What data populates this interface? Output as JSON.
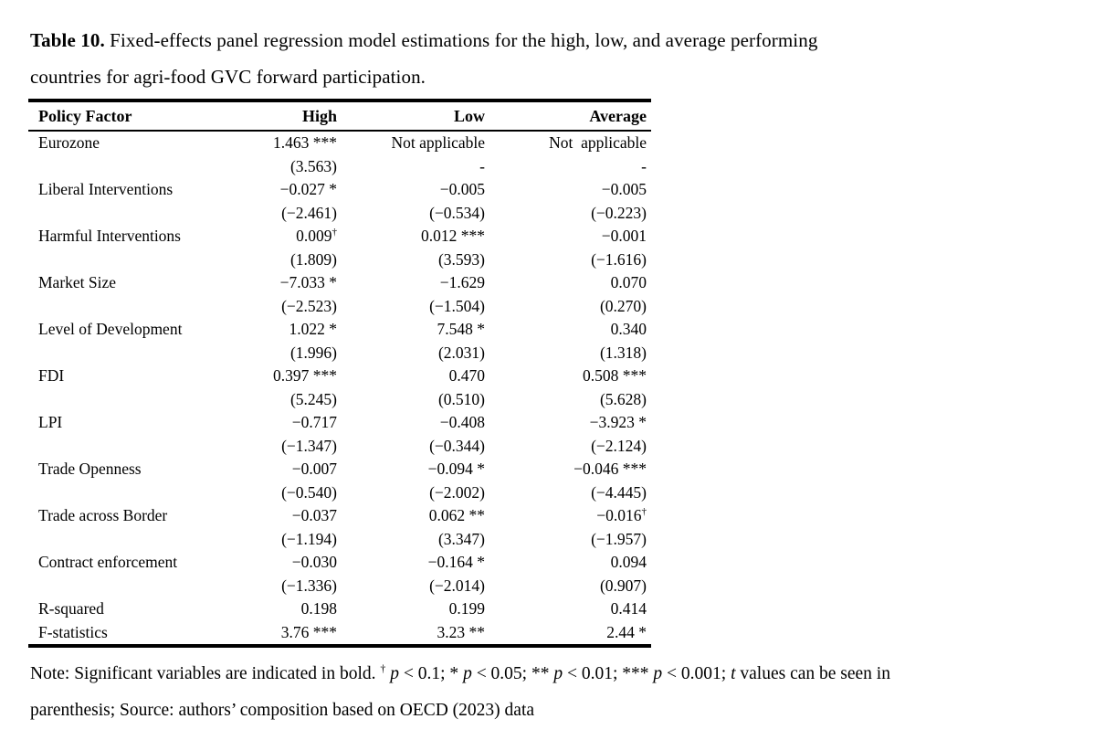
{
  "caption": {
    "label": "Table 10.",
    "rest_line1": " Fixed-effects panel regression model estimations for the high, low, and average performing",
    "line2": "countries for agri-food GVC forward participation."
  },
  "table": {
    "headers": [
      {
        "label": "Policy Factor"
      },
      {
        "label": "High"
      },
      {
        "label": "Low"
      },
      {
        "label": "Average"
      }
    ],
    "rows": [
      {
        "cells": [
          {
            "t": "Eurozone",
            "b": false
          },
          {
            "t": "1.463 ***",
            "b": true
          },
          {
            "t": "Not applicable",
            "b": false
          },
          {
            "t": "Not  applicable",
            "b": false
          }
        ]
      },
      {
        "cells": [
          {
            "t": "",
            "b": false
          },
          {
            "t": "(3.563)",
            "b": true
          },
          {
            "t": "-",
            "b": false
          },
          {
            "t": "-",
            "b": false
          }
        ]
      },
      {
        "cells": [
          {
            "t": "Liberal Interventions",
            "b": false
          },
          {
            "t": "−0.027 *",
            "b": true
          },
          {
            "t": "−0.005",
            "b": false
          },
          {
            "t": "−0.005",
            "b": false
          }
        ]
      },
      {
        "cells": [
          {
            "t": "",
            "b": false
          },
          {
            "t": "(−2.461)",
            "b": true
          },
          {
            "t": "(−0.534)",
            "b": false
          },
          {
            "t": "(−0.223)",
            "b": false
          }
        ]
      },
      {
        "cells": [
          {
            "t": "Harmful Interventions",
            "b": false
          },
          {
            "t": "0.009†",
            "b": true
          },
          {
            "t": "0.012 ***",
            "b": true
          },
          {
            "t": "−0.001",
            "b": false
          }
        ]
      },
      {
        "cells": [
          {
            "t": "",
            "b": false
          },
          {
            "t": "(1.809)",
            "b": true
          },
          {
            "t": "(3.593)",
            "b": true
          },
          {
            "t": "(−1.616)",
            "b": false
          }
        ]
      },
      {
        "cells": [
          {
            "t": "Market Size",
            "b": false
          },
          {
            "t": "−7.033 *",
            "b": true
          },
          {
            "t": "−1.629",
            "b": false
          },
          {
            "t": "0.070",
            "b": false
          }
        ]
      },
      {
        "cells": [
          {
            "t": "",
            "b": false
          },
          {
            "t": "(−2.523)",
            "b": true
          },
          {
            "t": "(−1.504)",
            "b": false
          },
          {
            "t": "(0.270)",
            "b": false
          }
        ]
      },
      {
        "cells": [
          {
            "t": "Level of Development",
            "b": false
          },
          {
            "t": "1.022 *",
            "b": true
          },
          {
            "t": "7.548 *",
            "b": true
          },
          {
            "t": "0.340",
            "b": false
          }
        ]
      },
      {
        "cells": [
          {
            "t": "",
            "b": false
          },
          {
            "t": "(1.996)",
            "b": true
          },
          {
            "t": "(2.031)",
            "b": true
          },
          {
            "t": "(1.318)",
            "b": false
          }
        ]
      },
      {
        "cells": [
          {
            "t": "FDI",
            "b": false
          },
          {
            "t": "0.397 ***",
            "b": true
          },
          {
            "t": "0.470",
            "b": false
          },
          {
            "t": "0.508 ***",
            "b": true
          }
        ]
      },
      {
        "cells": [
          {
            "t": "",
            "b": false
          },
          {
            "t": "(5.245)",
            "b": true
          },
          {
            "t": "(0.510)",
            "b": false
          },
          {
            "t": "(5.628)",
            "b": true
          }
        ]
      },
      {
        "cells": [
          {
            "t": "LPI",
            "b": false
          },
          {
            "t": "−0.717",
            "b": false
          },
          {
            "t": "−0.408",
            "b": false
          },
          {
            "t": "−3.923 *",
            "b": true
          }
        ]
      },
      {
        "cells": [
          {
            "t": "",
            "b": false
          },
          {
            "t": "(−1.347)",
            "b": false
          },
          {
            "t": "(−0.344)",
            "b": false
          },
          {
            "t": "(−2.124)",
            "b": true
          }
        ]
      },
      {
        "cells": [
          {
            "t": "Trade Openness",
            "b": false
          },
          {
            "t": "−0.007",
            "b": false
          },
          {
            "t": "−0.094 *",
            "b": true
          },
          {
            "t": "−0.046 ***",
            "b": true
          }
        ]
      },
      {
        "cells": [
          {
            "t": "",
            "b": false
          },
          {
            "t": "(−0.540)",
            "b": false
          },
          {
            "t": "(−2.002)",
            "b": true
          },
          {
            "t": "(−4.445)",
            "b": true
          }
        ]
      },
      {
        "cells": [
          {
            "t": "Trade across Border",
            "b": false
          },
          {
            "t": "−0.037",
            "b": false
          },
          {
            "t": "0.062 **",
            "b": true
          },
          {
            "t": "−0.016†",
            "b": true
          }
        ]
      },
      {
        "cells": [
          {
            "t": "",
            "b": false
          },
          {
            "t": "(−1.194)",
            "b": false
          },
          {
            "t": "(3.347)",
            "b": true
          },
          {
            "t": "(−1.957)",
            "b": true
          }
        ]
      },
      {
        "cells": [
          {
            "t": "Contract enforcement",
            "b": false
          },
          {
            "t": "−0.030",
            "b": false
          },
          {
            "t": "−0.164 *",
            "b": true
          },
          {
            "t": "0.094",
            "b": false
          }
        ]
      },
      {
        "cells": [
          {
            "t": "",
            "b": false
          },
          {
            "t": "(−1.336)",
            "b": false
          },
          {
            "t": "(−2.014)",
            "b": true
          },
          {
            "t": "(0.907)",
            "b": false
          }
        ]
      },
      {
        "cells": [
          {
            "t": "R-squared",
            "b": false
          },
          {
            "t": "0.198",
            "b": false
          },
          {
            "t": "0.199",
            "b": false
          },
          {
            "t": "0.414",
            "b": false
          }
        ]
      },
      {
        "cells": [
          {
            "t": "F-statistics",
            "b": false
          },
          {
            "t": "3.76 ***",
            "b": false
          },
          {
            "t": "3.23 **",
            "b": false
          },
          {
            "t": "2.44 *",
            "b": false
          }
        ]
      }
    ]
  },
  "note": {
    "line1": [
      {
        "t": "Note: Significant variables are indicated in bold. ",
        "s": "n"
      },
      {
        "t": "†",
        "s": "sup"
      },
      {
        "t": " ",
        "s": "n"
      },
      {
        "t": "p",
        "s": "i"
      },
      {
        "t": " < 0.1; * ",
        "s": "n"
      },
      {
        "t": "p",
        "s": "i"
      },
      {
        "t": " < 0.05; ** ",
        "s": "n"
      },
      {
        "t": "p",
        "s": "i"
      },
      {
        "t": " < 0.01; *** ",
        "s": "n"
      },
      {
        "t": "p",
        "s": "i"
      },
      {
        "t": " < 0.001; ",
        "s": "n"
      },
      {
        "t": "t",
        "s": "i"
      },
      {
        "t": " values can be seen in",
        "s": "n"
      }
    ],
    "line2": "parenthesis; Source: authors’ composition based on OECD (2023) data"
  }
}
